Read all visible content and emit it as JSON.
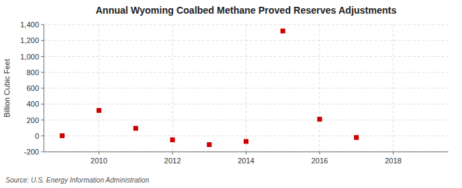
{
  "chart_data": {
    "type": "scatter",
    "title": "Annual Wyoming Coalbed Methane Proved Reserves Adjustments",
    "y_label": "Billion Cubic Feet",
    "annotations": [
      "Source: U.S. Energy Information Administration"
    ],
    "x": [
      2009,
      2010,
      2011,
      2012,
      2013,
      2014,
      2015,
      2016,
      2017
    ],
    "values": [
      2,
      320,
      95,
      -50,
      -110,
      -70,
      1320,
      210,
      -20
    ],
    "color": "#cc0000",
    "marker": "square",
    "xlim": [
      2008.5,
      2019.5
    ],
    "ylim": [
      -200,
      1400
    ],
    "xticks": [
      2010,
      2012,
      2014,
      2016,
      2018
    ],
    "yticks": [
      -200,
      0,
      200,
      400,
      600,
      800,
      {
        "value": 1000,
        "label": "1,000"
      },
      {
        "value": 1200,
        "label": "1,200"
      },
      {
        "value": 1400,
        "label": "1,400"
      }
    ],
    "grid": true
  }
}
